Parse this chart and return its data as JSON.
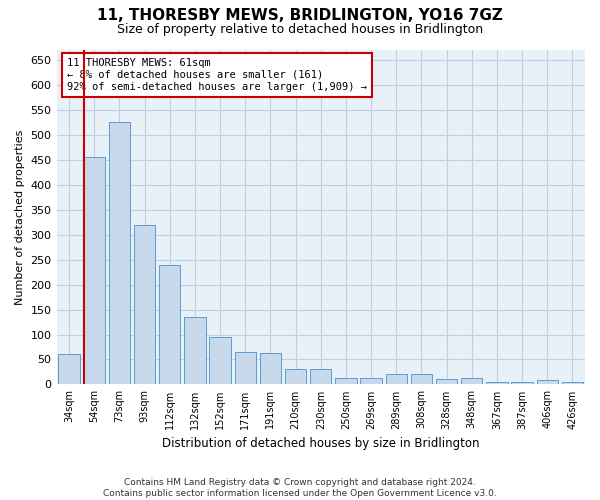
{
  "title": "11, THORESBY MEWS, BRIDLINGTON, YO16 7GZ",
  "subtitle": "Size of property relative to detached houses in Bridlington",
  "xlabel": "Distribution of detached houses by size in Bridlington",
  "ylabel": "Number of detached properties",
  "categories": [
    "34sqm",
    "54sqm",
    "73sqm",
    "93sqm",
    "112sqm",
    "132sqm",
    "152sqm",
    "171sqm",
    "191sqm",
    "210sqm",
    "230sqm",
    "250sqm",
    "269sqm",
    "289sqm",
    "308sqm",
    "328sqm",
    "348sqm",
    "367sqm",
    "387sqm",
    "406sqm",
    "426sqm"
  ],
  "values": [
    60,
    455,
    525,
    320,
    240,
    135,
    95,
    65,
    62,
    30,
    30,
    13,
    13,
    20,
    20,
    10,
    13,
    5,
    5,
    9,
    5
  ],
  "bar_color": "#c8d9ec",
  "bar_edge_color": "#5b9bd5",
  "annotation_text": "11 THORESBY MEWS: 61sqm\n← 8% of detached houses are smaller (161)\n92% of semi-detached houses are larger (1,909) →",
  "annotation_box_color": "#ffffff",
  "annotation_box_edge_color": "#cc0000",
  "annotation_text_color": "#000000",
  "ref_line_color": "#cc0000",
  "background_color": "#ffffff",
  "plot_bg_color": "#e8f0f8",
  "grid_color": "#c0cfe0",
  "footer": "Contains HM Land Registry data © Crown copyright and database right 2024.\nContains public sector information licensed under the Open Government Licence v3.0.",
  "ylim": [
    0,
    670
  ],
  "yticks": [
    0,
    50,
    100,
    150,
    200,
    250,
    300,
    350,
    400,
    450,
    500,
    550,
    600,
    650
  ]
}
